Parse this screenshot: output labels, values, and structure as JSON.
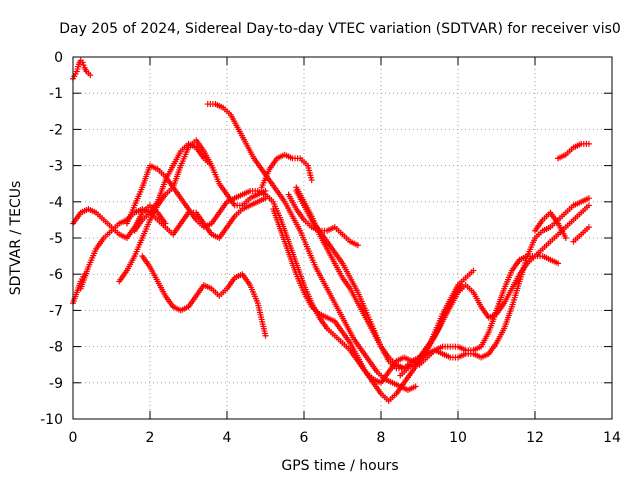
{
  "chart_data": {
    "type": "scatter",
    "title": "Day 205 of 2024, Sidereal Day-to-day VTEC variation (SDTVAR) for receiver vis0",
    "xlabel": "GPS time / hours",
    "ylabel": "SDTVAR / TECUs",
    "xlim": [
      0,
      14
    ],
    "ylim": [
      -10,
      0
    ],
    "xticks": [
      "0",
      "2",
      "4",
      "6",
      "8",
      "10",
      "12",
      "14"
    ],
    "yticks": [
      "0",
      "-1",
      "-2",
      "-3",
      "-4",
      "-5",
      "-6",
      "-7",
      "-8",
      "-9",
      "-10"
    ],
    "grid": true,
    "marker": "plus",
    "color": "#ff0000",
    "series": [
      {
        "x": [
          0.0,
          0.1,
          0.15,
          0.2,
          0.25,
          0.3,
          0.35,
          0.4,
          0.45
        ],
        "y": [
          -0.6,
          -0.4,
          -0.2,
          -0.1,
          -0.15,
          -0.3,
          -0.4,
          -0.45,
          -0.5
        ]
      },
      {
        "x": [
          0.0,
          0.2,
          0.4,
          0.6,
          0.8,
          1.0,
          1.2,
          1.4,
          1.6,
          1.8,
          2.0,
          2.2,
          2.4
        ],
        "y": [
          -4.6,
          -4.3,
          -4.2,
          -4.3,
          -4.5,
          -4.7,
          -4.9,
          -5.0,
          -4.7,
          -4.3,
          -4.1,
          -4.3,
          -4.6
        ]
      },
      {
        "x": [
          0.0,
          0.1,
          0.2,
          0.3
        ],
        "y": [
          -6.8,
          -6.5,
          -6.2,
          -6.0
        ]
      },
      {
        "x": [
          0.2,
          0.4,
          0.6,
          0.8,
          1.0,
          1.2,
          1.4,
          1.6,
          1.8,
          2.0,
          2.2,
          2.4,
          2.6,
          2.8,
          3.0,
          3.2,
          3.4,
          3.6,
          3.8,
          4.0,
          4.2,
          4.4,
          4.6,
          4.8,
          5.0
        ],
        "y": [
          -6.4,
          -5.8,
          -5.3,
          -5.0,
          -4.8,
          -4.6,
          -4.5,
          -4.3,
          -4.2,
          -4.3,
          -4.5,
          -4.7,
          -4.9,
          -4.6,
          -4.3,
          -4.3,
          -4.6,
          -4.9,
          -5.0,
          -4.7,
          -4.4,
          -4.2,
          -4.1,
          -4.0,
          -3.9
        ]
      },
      {
        "x": [
          1.2,
          1.4,
          1.6,
          1.8,
          2.0,
          2.2,
          2.4,
          2.6,
          2.8,
          3.0,
          3.2,
          3.4,
          3.6,
          3.8,
          4.0,
          4.2,
          4.4,
          4.6,
          4.8,
          5.0,
          5.2,
          5.4,
          5.6,
          5.8,
          6.0,
          6.2,
          6.4,
          6.6,
          6.8,
          7.0,
          7.2,
          7.4,
          7.6,
          7.8,
          8.0,
          8.2,
          8.4,
          8.6,
          8.8,
          9.0,
          9.2,
          9.4,
          9.6,
          9.8,
          10.0,
          10.2,
          10.4,
          10.6,
          10.8,
          11.0,
          11.2,
          11.4,
          11.6,
          11.8,
          12.0,
          12.2,
          12.4,
          12.6,
          12.8,
          13.0,
          13.2,
          13.4
        ],
        "y": [
          -6.2,
          -5.9,
          -5.5,
          -5.0,
          -4.5,
          -4.1,
          -3.8,
          -3.6,
          -3.9,
          -4.2,
          -4.5,
          -4.7,
          -4.6,
          -4.3,
          -4.0,
          -3.9,
          -3.8,
          -3.7,
          -3.7,
          -3.8,
          -4.0,
          -4.5,
          -5.1,
          -5.7,
          -6.3,
          -6.8,
          -7.2,
          -7.5,
          -7.7,
          -7.9,
          -8.1,
          -8.4,
          -8.7,
          -8.9,
          -9.0,
          -8.7,
          -8.4,
          -8.3,
          -8.4,
          -8.5,
          -8.3,
          -8.1,
          -8.2,
          -8.3,
          -8.3,
          -8.2,
          -8.2,
          -8.3,
          -8.2,
          -7.9,
          -7.5,
          -6.9,
          -6.2,
          -5.5,
          -5.0,
          -4.8,
          -4.7,
          -4.5,
          -4.3,
          -4.1,
          -4.0,
          -3.9
        ]
      },
      {
        "x": [
          1.6,
          1.8,
          2.0,
          2.2,
          2.4,
          2.6,
          2.8,
          3.0,
          3.2,
          3.4,
          3.6
        ],
        "y": [
          -4.8,
          -4.5,
          -4.3,
          -4.0,
          -3.4,
          -3.0,
          -2.6,
          -2.4,
          -2.5,
          -2.8,
          -3.0
        ]
      },
      {
        "x": [
          1.4,
          1.6,
          1.8,
          2.0,
          2.2,
          2.4,
          2.6,
          2.8,
          3.0,
          3.2,
          3.4,
          3.6,
          3.8,
          4.0,
          4.2,
          4.4,
          4.6,
          4.8,
          5.0
        ],
        "y": [
          -4.6,
          -4.1,
          -3.6,
          -3.0,
          -3.1,
          -3.3,
          -3.6,
          -3.0,
          -2.5,
          -2.3,
          -2.6,
          -3.0,
          -3.5,
          -3.8,
          -4.1,
          -4.1,
          -3.9,
          -3.8,
          -3.7
        ]
      },
      {
        "x": [
          1.8,
          2.0,
          2.2,
          2.4,
          2.6,
          2.8,
          3.0,
          3.2,
          3.4,
          3.6,
          3.8,
          4.0,
          4.2,
          4.4,
          4.6,
          4.8,
          5.0
        ],
        "y": [
          -5.5,
          -5.8,
          -6.2,
          -6.6,
          -6.9,
          -7.0,
          -6.9,
          -6.6,
          -6.3,
          -6.4,
          -6.6,
          -6.4,
          -6.1,
          -6.0,
          -6.3,
          -6.8,
          -7.7
        ]
      },
      {
        "x": [
          3.5,
          3.7,
          3.9,
          4.1,
          4.3,
          4.5,
          4.7,
          4.9,
          5.1,
          5.3,
          5.5,
          5.7,
          5.9,
          6.1,
          6.3,
          6.5,
          6.7,
          6.9,
          7.1,
          7.3,
          7.5,
          7.7,
          7.9,
          8.1,
          8.3,
          8.5,
          8.7,
          8.9
        ],
        "y": [
          -1.3,
          -1.3,
          -1.4,
          -1.6,
          -2.0,
          -2.4,
          -2.8,
          -3.1,
          -3.4,
          -3.7,
          -4.0,
          -4.4,
          -4.8,
          -5.3,
          -5.8,
          -6.2,
          -6.6,
          -7.0,
          -7.4,
          -7.8,
          -8.1,
          -8.4,
          -8.7,
          -8.9,
          -9.0,
          -9.1,
          -9.2,
          -9.1
        ]
      },
      {
        "x": [
          4.9,
          5.1,
          5.3,
          5.5,
          5.7,
          5.9,
          6.1,
          6.2
        ],
        "y": [
          -3.6,
          -3.1,
          -2.8,
          -2.7,
          -2.8,
          -2.8,
          -3.0,
          -3.4
        ]
      },
      {
        "x": [
          5.6,
          5.8,
          6.0,
          6.2,
          6.4,
          6.6,
          6.8,
          7.0,
          7.2,
          7.4
        ],
        "y": [
          -3.8,
          -4.2,
          -4.5,
          -4.7,
          -4.8,
          -4.8,
          -4.7,
          -4.9,
          -5.1,
          -5.2
        ]
      },
      {
        "x": [
          5.2,
          5.4,
          5.6,
          5.8,
          6.0,
          6.2,
          6.4,
          6.6,
          6.8,
          7.0,
          7.2,
          7.4,
          7.6,
          7.8,
          8.0,
          8.2,
          8.4,
          8.6,
          8.8,
          9.0,
          9.2,
          9.4,
          9.6,
          9.8,
          10.0,
          10.2,
          10.4
        ],
        "y": [
          -4.2,
          -4.8,
          -5.4,
          -6.0,
          -6.5,
          -6.9,
          -7.1,
          -7.2,
          -7.3,
          -7.6,
          -7.9,
          -8.3,
          -8.7,
          -9.0,
          -9.3,
          -9.5,
          -9.3,
          -9.0,
          -8.7,
          -8.4,
          -8.1,
          -7.6,
          -7.1,
          -6.7,
          -6.3,
          -6.1,
          -5.9
        ]
      },
      {
        "x": [
          5.8,
          6.0,
          6.2,
          6.4,
          6.6,
          6.8,
          7.0,
          7.2,
          7.4,
          7.6,
          7.8,
          8.0,
          8.2,
          8.4,
          8.6,
          8.8,
          9.0,
          9.2,
          9.4,
          9.6,
          9.8,
          10.0,
          10.2,
          10.4,
          10.6,
          10.8,
          11.0,
          11.2,
          11.4,
          11.6,
          11.8,
          12.0,
          12.2,
          12.4,
          12.6,
          12.8,
          13.0,
          13.2,
          13.4
        ],
        "y": [
          -3.6,
          -4.0,
          -4.4,
          -4.9,
          -5.3,
          -5.7,
          -6.1,
          -6.4,
          -6.8,
          -7.2,
          -7.6,
          -8.0,
          -8.3,
          -8.5,
          -8.6,
          -8.5,
          -8.3,
          -8.0,
          -7.7,
          -7.3,
          -6.9,
          -6.5,
          -6.3,
          -6.5,
          -6.9,
          -7.2,
          -7.1,
          -6.8,
          -6.4,
          -6.0,
          -5.7,
          -5.5,
          -5.3,
          -5.1,
          -4.9,
          -4.7,
          -4.5,
          -4.3,
          -4.1
        ]
      },
      {
        "x": [
          5.8,
          6.0,
          6.2,
          6.4,
          6.6,
          6.8,
          7.0,
          7.2,
          7.4,
          7.6,
          7.8,
          8.0,
          8.2,
          8.4,
          8.6,
          8.8,
          9.0,
          9.2,
          9.4,
          9.6,
          9.8,
          10.0,
          10.2,
          10.4,
          10.6,
          10.8,
          11.0,
          11.2,
          11.4,
          11.6,
          11.8,
          12.0,
          12.2,
          12.4,
          12.6
        ],
        "y": [
          -3.7,
          -4.1,
          -4.5,
          -4.8,
          -5.1,
          -5.4,
          -5.7,
          -6.1,
          -6.5,
          -7.0,
          -7.5,
          -8.0,
          -8.4,
          -8.6,
          -8.6,
          -8.4,
          -8.3,
          -8.2,
          -8.1,
          -8.0,
          -8.0,
          -8.0,
          -8.1,
          -8.1,
          -8.0,
          -7.6,
          -7.0,
          -6.4,
          -5.9,
          -5.6,
          -5.5,
          -5.5,
          -5.5,
          -5.6,
          -5.7
        ]
      },
      {
        "x": [
          8.5,
          8.7,
          8.9,
          9.1,
          9.3,
          9.5,
          9.7,
          9.9,
          10.1
        ],
        "y": [
          -8.8,
          -8.6,
          -8.4,
          -8.2,
          -7.9,
          -7.5,
          -7.0,
          -6.6,
          -6.3
        ]
      },
      {
        "x": [
          12.0,
          12.2,
          12.4,
          12.6,
          12.8
        ],
        "y": [
          -4.8,
          -4.5,
          -4.3,
          -4.6,
          -5.0
        ]
      },
      {
        "x": [
          12.6,
          12.8,
          13.0,
          13.2,
          13.4
        ],
        "y": [
          -2.8,
          -2.7,
          -2.5,
          -2.4,
          -2.4
        ]
      },
      {
        "x": [
          13.0,
          13.2,
          13.4
        ],
        "y": [
          -5.1,
          -4.9,
          -4.7
        ]
      }
    ]
  }
}
